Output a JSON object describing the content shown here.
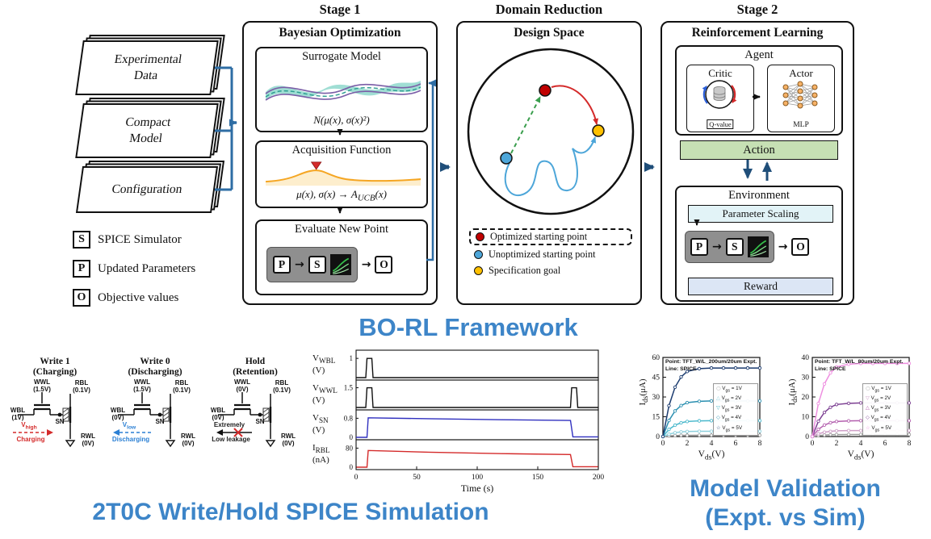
{
  "colors": {
    "accent_blue": "#3d85c8",
    "arrow_blue": "#2e6da4",
    "arrow_navy": "#1f4e79",
    "action_green": "#c6e0b4",
    "scaling_cyan": "#e2f3f7",
    "reward_blue": "#dce6f5",
    "surrogate_teal": "#8fd8cc",
    "acquisition_orange": "#f5a623"
  },
  "inputs": [
    {
      "line1": "Experimental",
      "line2": "Data"
    },
    {
      "line1": "Compact",
      "line2": "Model"
    },
    {
      "line1": "Configuration",
      "line2": ""
    }
  ],
  "symbol_legend": [
    {
      "symbol": "S",
      "label": "SPICE Simulator"
    },
    {
      "symbol": "P",
      "label": "Updated Parameters"
    },
    {
      "symbol": "O",
      "label": "Objective values"
    }
  ],
  "stage1": {
    "stage_label": "Stage 1",
    "title": "Bayesian Optimization",
    "surrogate": {
      "title": "Surrogate Model",
      "formula": "N(μ(x), σ(x)²)"
    },
    "acquisition": {
      "title": "Acquisition Function",
      "formula": "μ(x), σ(x) → A_{UCB}(x)"
    },
    "evaluate": {
      "title": "Evaluate New Point",
      "p": "P",
      "s": "S",
      "o": "O"
    }
  },
  "domain": {
    "stage_label": "Domain Reduction",
    "title": "Design Space",
    "legend": [
      {
        "color": "#c00000",
        "label": "Optimized starting point"
      },
      {
        "color": "#4da6d9",
        "label": "Unoptimized starting point"
      },
      {
        "color": "#ffc000",
        "label": "Specification goal"
      }
    ]
  },
  "stage2": {
    "stage_label": "Stage 2",
    "title": "Reinforcement Learning",
    "agent": {
      "title": "Agent",
      "critic": "Critic",
      "critic_sub": "Q-value",
      "actor": "Actor",
      "actor_sub": "MLP"
    },
    "action_label": "Action",
    "environment": {
      "title": "Environment",
      "scaling_label": "Parameter Scaling",
      "p": "P",
      "s": "S",
      "o": "O",
      "reward_label": "Reward"
    }
  },
  "framework_caption": "BO-RL Framework",
  "spice_caption": "2T0C Write/Hold SPICE Simulation",
  "validation_caption1": "Model Validation",
  "validation_caption2": "(Expt. vs Sim)",
  "circuits": [
    {
      "title1": "Write 1",
      "title2": "(Charging)",
      "wwl": "WWL",
      "wwl_v": "(1.5V)",
      "rbl": "RBL",
      "rbl_v": "(0.1V)",
      "wbl": "WBL",
      "wbl_v": "(1V)",
      "sn": "SN",
      "rwl": "RWL",
      "rwl_v": "(0V)",
      "note1": "V_{high}",
      "note2": "Charging",
      "note_color": "#d42a2a",
      "arrow": "right"
    },
    {
      "title1": "Write 0",
      "title2": "(Discharging)",
      "wwl": "WWL",
      "wwl_v": "(1.5V)",
      "rbl": "RBL",
      "rbl_v": "(0.1V)",
      "wbl": "WBL",
      "wbl_v": "(0V)",
      "sn": "SN",
      "rwl": "RWL",
      "rwl_v": "(0V)",
      "note1": "V_{low}",
      "note2": "Discharging",
      "note_color": "#2a7fd4",
      "arrow": "left"
    },
    {
      "title1": "Hold",
      "title2": "(Retention)",
      "wwl": "WWL",
      "wwl_v": "(0V)",
      "rbl": "RBL",
      "rbl_v": "(0.1V)",
      "wbl": "WBL",
      "wbl_v": "(0V)",
      "sn": "SN",
      "rwl": "RWL",
      "rwl_v": "(0V)",
      "note1": "Extremely",
      "note2": "Low leakage",
      "note_color": "#222222",
      "arrow": "hold"
    }
  ],
  "chart_data": [
    {
      "id": "spice-waveforms",
      "type": "line",
      "xlabel": "Time (s)",
      "xlim": [
        0,
        200
      ],
      "xticks": [
        0,
        50,
        100,
        150,
        200
      ],
      "subplots": [
        {
          "label": "V_{WBL}",
          "unit": "(V)",
          "ylim": [
            0,
            1.3
          ],
          "yticks": [
            1
          ],
          "color": "#111111",
          "points": [
            [
              0,
              0
            ],
            [
              8,
              0
            ],
            [
              9,
              1
            ],
            [
              13,
              1
            ],
            [
              14,
              0
            ],
            [
              200,
              0
            ]
          ]
        },
        {
          "label": "V_{WWL}",
          "unit": "(V)",
          "ylim": [
            0,
            1.9
          ],
          "yticks": [
            1.5
          ],
          "color": "#111111",
          "points": [
            [
              0,
              0
            ],
            [
              8,
              0
            ],
            [
              9,
              1.5
            ],
            [
              13,
              1.5
            ],
            [
              14,
              0
            ],
            [
              177,
              0
            ],
            [
              178,
              1.5
            ],
            [
              182,
              1.5
            ],
            [
              183,
              0
            ],
            [
              200,
              0
            ]
          ]
        },
        {
          "label": "V_{SN}",
          "unit": "(V)",
          "ylim": [
            0,
            1.05
          ],
          "yticks": [
            0.8,
            0
          ],
          "color": "#3030bf",
          "points": [
            [
              0,
              0
            ],
            [
              9,
              0
            ],
            [
              10,
              0.82
            ],
            [
              60,
              0.78
            ],
            [
              120,
              0.74
            ],
            [
              177,
              0.71
            ],
            [
              179,
              0.02
            ],
            [
              200,
              0.02
            ]
          ]
        },
        {
          "label": "I_{RBL}",
          "unit": "(nA)",
          "ylim": [
            0,
            105
          ],
          "yticks": [
            80,
            0
          ],
          "color": "#d42a2a",
          "points": [
            [
              0,
              0
            ],
            [
              9,
              0
            ],
            [
              10,
              70
            ],
            [
              60,
              63
            ],
            [
              120,
              57
            ],
            [
              177,
              53
            ],
            [
              179,
              2
            ],
            [
              200,
              2
            ]
          ]
        }
      ]
    },
    {
      "id": "iv-200",
      "type": "line+scatter",
      "title1": "Point: TFT_W/L_200um/20um Expt.",
      "title2": "Line: SPICE",
      "xlabel": "V_{ds}(V)",
      "ylabel": "I_{ds}(μA)",
      "xlim": [
        0,
        8
      ],
      "ylim": [
        0,
        60
      ],
      "xticks": [
        0,
        2,
        4,
        6,
        8
      ],
      "yticks": [
        0,
        15,
        30,
        45,
        60
      ],
      "x": [
        0,
        0.5,
        1,
        1.5,
        2,
        3,
        4,
        5,
        6,
        7,
        8
      ],
      "series": [
        {
          "name": "V_{gs} = 1V",
          "marker": "○",
          "color": "#9e9e9e",
          "values": [
            0,
            0.5,
            0.7,
            0.9,
            0.95,
            1,
            1,
            1,
            1,
            1,
            1
          ]
        },
        {
          "name": "V_{gs} = 2V",
          "marker": "△",
          "color": "#8fd0dd",
          "values": [
            0,
            1.8,
            2.9,
            3.5,
            3.8,
            4,
            4,
            4,
            4,
            4,
            4
          ]
        },
        {
          "name": "V_{gs} = 3V",
          "marker": "▽",
          "color": "#49b8cc",
          "values": [
            0,
            5.4,
            8.6,
            10.4,
            11.4,
            11.9,
            12,
            12,
            12,
            12,
            12
          ]
        },
        {
          "name": "V_{gs} = 4V",
          "marker": "◇",
          "color": "#2a8fb0",
          "values": [
            0,
            12.2,
            19.4,
            23.5,
            25.7,
            26.7,
            27,
            27,
            27,
            27,
            27
          ]
        },
        {
          "name": "V_{gs} = 5V",
          "marker": "☆",
          "color": "#1b3b6f",
          "values": [
            0,
            23.4,
            37.4,
            45.2,
            49.4,
            51.5,
            52,
            52,
            52,
            52,
            52
          ]
        }
      ]
    },
    {
      "id": "iv-80",
      "type": "line+scatter",
      "title1": "Point: TFT_W/L_80um/20um Expt.",
      "title2": "Line: SPICE",
      "xlabel": "V_{ds}(V)",
      "ylabel": "I_{ds}(μA)",
      "xlim": [
        0,
        8
      ],
      "ylim": [
        0,
        40
      ],
      "xticks": [
        0,
        2,
        4,
        6,
        8
      ],
      "yticks": [
        0,
        10,
        20,
        30,
        40
      ],
      "x": [
        0,
        0.5,
        1,
        1.5,
        2,
        3,
        4,
        5,
        6,
        7,
        8
      ],
      "series": [
        {
          "name": "V_{gs} = 1V",
          "marker": "○",
          "color": "#9e9e9e",
          "values": [
            0,
            0.5,
            0.7,
            0.9,
            0.95,
            1,
            1,
            1,
            1,
            1,
            1
          ]
        },
        {
          "name": "V_{gs} = 2V",
          "marker": "▽",
          "color": "#cfa0c8",
          "values": [
            0,
            1.4,
            2.2,
            2.6,
            2.9,
            3,
            3,
            3,
            3,
            3,
            3
          ]
        },
        {
          "name": "V_{gs} = 3V",
          "marker": "△",
          "color": "#b35fae",
          "values": [
            0,
            3.6,
            5.8,
            7,
            7.6,
            7.9,
            8,
            8,
            8,
            8,
            8
          ]
        },
        {
          "name": "V_{gs} = 4V",
          "marker": "◇",
          "color": "#7c3f92",
          "values": [
            0,
            7.7,
            12.2,
            14.8,
            16.2,
            16.8,
            17,
            17,
            17,
            17,
            17
          ]
        },
        {
          "name": "V_{gs} = 5V",
          "marker": "☆",
          "color": "#ee8fe0",
          "values": [
            0,
            16.7,
            26.6,
            32.2,
            35.2,
            36.6,
            37,
            37,
            37,
            37,
            37
          ]
        }
      ]
    }
  ]
}
